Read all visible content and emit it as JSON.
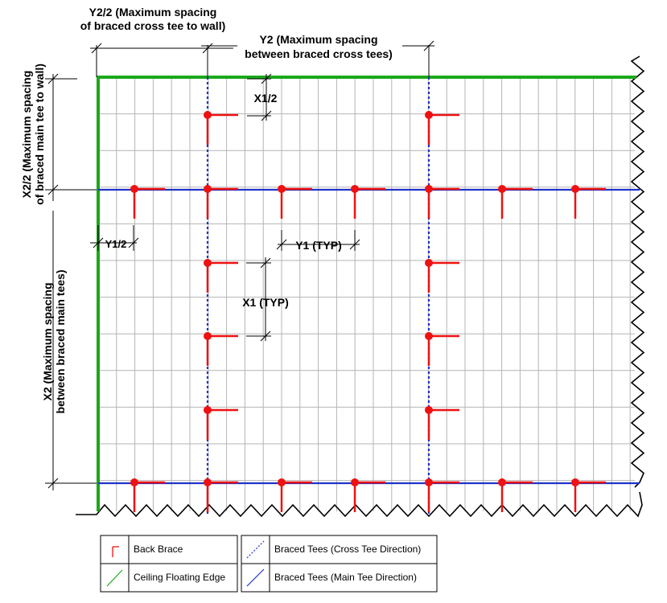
{
  "dimensions": {
    "y2_half_line1": "Y2/2 (Maximum spacing",
    "y2_half_line2": "of braced cross tee to wall)",
    "y2_line1": "Y2 (Maximum spacing",
    "y2_line2": "between braced cross tees)",
    "x2_half_line1": "X2/2 (Maximum spacing",
    "x2_half_line2": "of braced main tee to wall)",
    "x2_line1": "X2 (Maximum spacing",
    "x2_line2": "between braced main tees)",
    "x1_half": "X1/2",
    "y1_half": "Y1/2",
    "y1_typ": "Y1 (TYP)",
    "x1_typ": "X1 (TYP)"
  },
  "legend": {
    "back_brace": "Back Brace",
    "floating_edge": "Ceiling Floating Edge",
    "cross_tee": "Braced Tees (Cross Tee Direction)",
    "main_tee": "Braced Tees (Main Tee Direction)"
  },
  "colors": {
    "grid": "#b4b4b4",
    "wall_edge": "#1aa81a",
    "braced_tee": "#1f33c8",
    "back_brace": "#ee1111",
    "outline": "#000000"
  }
}
